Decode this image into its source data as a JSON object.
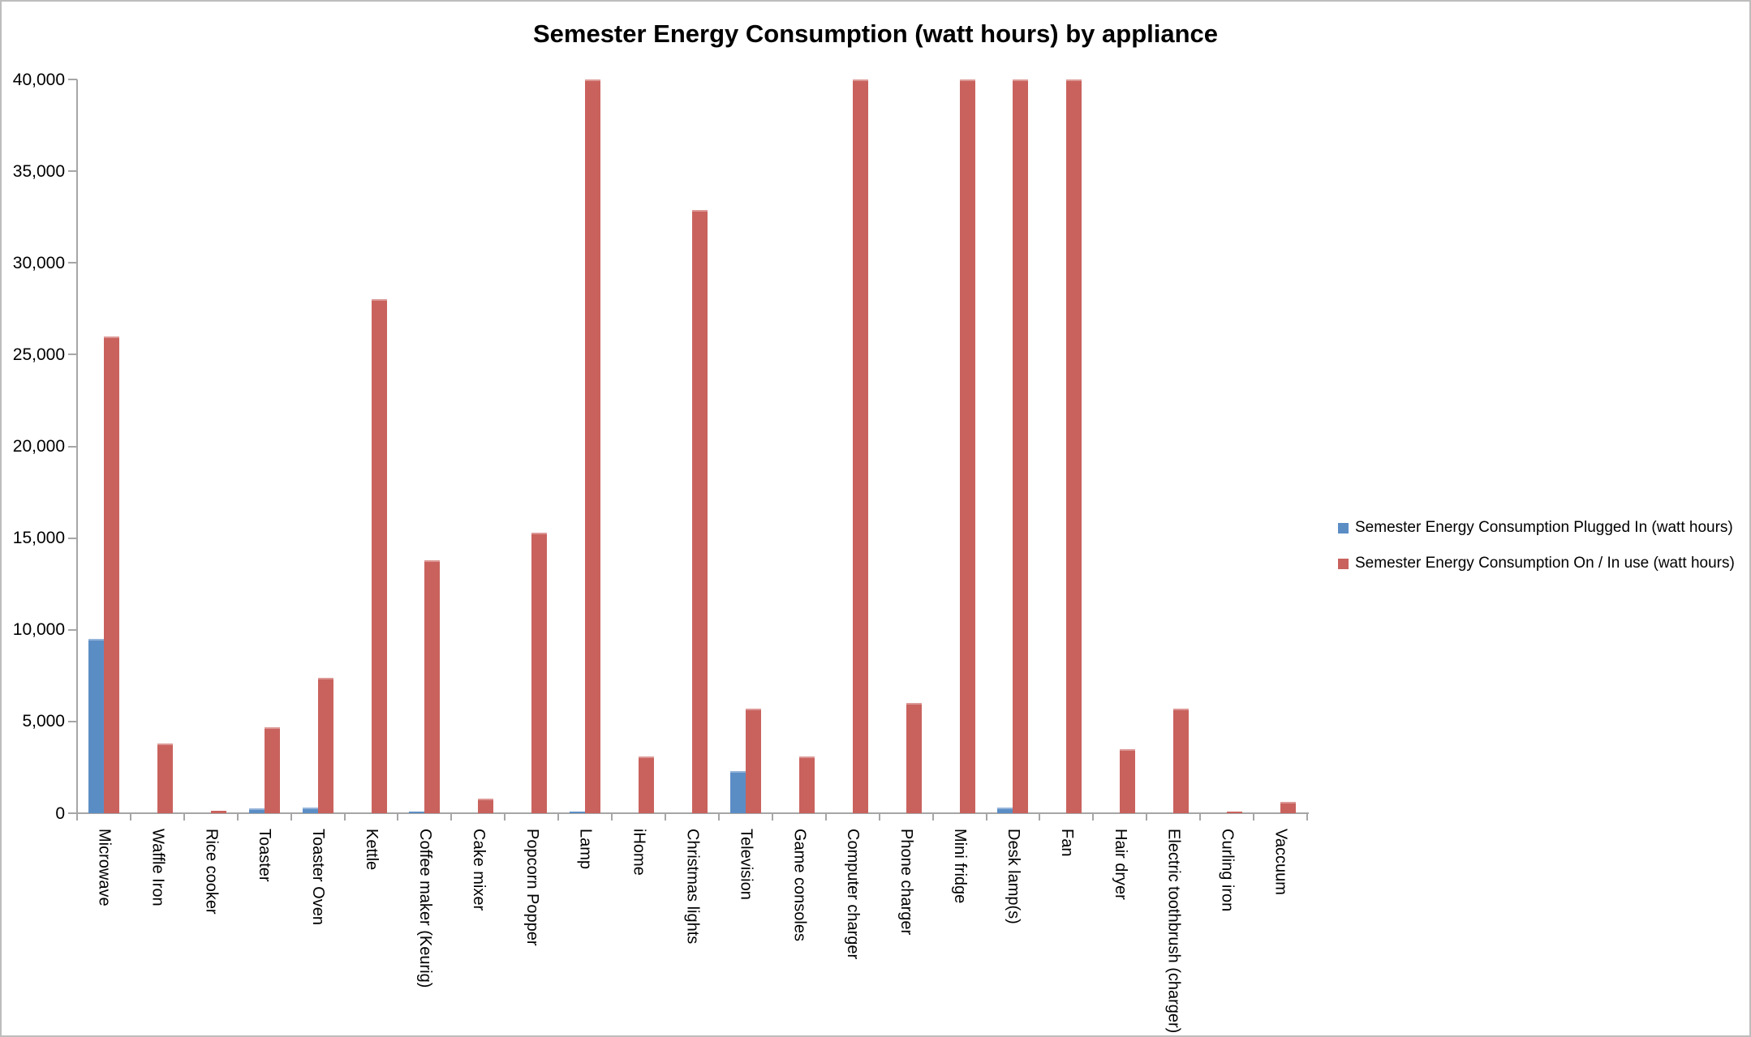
{
  "title": "Semester Energy Consumption (watt hours) by appliance",
  "chart_data": {
    "type": "bar",
    "title": "Semester Energy Consumption (watt hours) by appliance",
    "categories": [
      "Microwave",
      "Waffle Iron",
      "Rice cooker",
      "Toaster",
      "Toaster Oven",
      "Kettle",
      "Coffee maker (Keurig)",
      "Cake mixer",
      "Popcorn Popper",
      "Lamp",
      "iHome",
      "Christmas lights",
      "Television",
      "Game consoles",
      "Computer charger",
      "Phone charger",
      "Mini fridge",
      "Desk lamp(s)",
      "Fan",
      "Hair dryer",
      "Electric toothbrush (charger)",
      "Curling iron",
      "Vaccuum"
    ],
    "series": [
      {
        "name": "Semester Energy Consumption Plugged In (watt hours)",
        "color": "#5b8dc5",
        "values": [
          9500,
          0,
          0,
          250,
          300,
          0,
          90,
          0,
          0,
          90,
          0,
          0,
          2300,
          0,
          0,
          0,
          0,
          300,
          0,
          0,
          0,
          0,
          0
        ]
      },
      {
        "name": "Semester Energy Consumption On / In use (watt hours)",
        "color": "#c9625d",
        "values": [
          26000,
          3800,
          130,
          4700,
          7400,
          28000,
          13800,
          800,
          15300,
          40000,
          3100,
          32900,
          5700,
          3100,
          40000,
          6000,
          40000,
          40000,
          40000,
          3500,
          5700,
          90,
          620
        ]
      }
    ],
    "xlabel": "",
    "ylabel": "",
    "ylim": [
      0,
      40000
    ],
    "ytick_step": 5000,
    "ytick_labels": [
      "0",
      "5,000",
      "10,000",
      "15,000",
      "20,000",
      "25,000",
      "30,000",
      "35,000",
      "40,000"
    ],
    "grid": false,
    "legend_position": "right-middle",
    "note": "Bars at 40,000 are clipped at the axis maximum"
  },
  "colors": {
    "axis": "#a6a6a6",
    "background": "#ffffff",
    "border": "#bdbdbd",
    "text": "#000000"
  }
}
